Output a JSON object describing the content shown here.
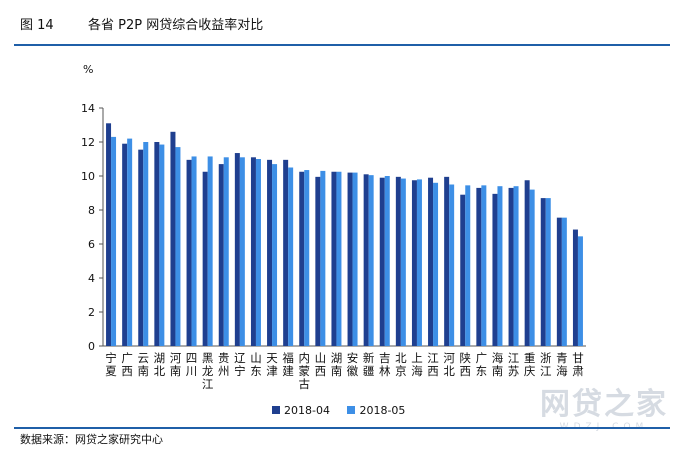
{
  "header": {
    "figure_no": "图 14",
    "title": "各省 P2P 网贷综合收益率对比"
  },
  "source": "数据来源：网贷之家研究中心",
  "watermark": {
    "text": "网贷之家",
    "sub": "WDZJ.COM"
  },
  "colors": {
    "series_1": "#1f3f8f",
    "series_2": "#3d8fe6",
    "rule": "#1f5fa8"
  },
  "chart_data": {
    "type": "bar",
    "title": "各省 P2P 网贷综合收益率对比",
    "ylabel": "%",
    "xlabel": "",
    "ylim": [
      0,
      14
    ],
    "yticks": [
      0,
      2,
      4,
      6,
      8,
      10,
      12,
      14
    ],
    "grid": false,
    "legend_position": "bottom",
    "categories": [
      "宁夏",
      "广西",
      "云南",
      "湖北",
      "河南",
      "四川",
      "黑龙江",
      "贵州",
      "辽宁",
      "山东",
      "天津",
      "福建",
      "内蒙古",
      "山西",
      "湖南",
      "安徽",
      "新疆",
      "吉林",
      "北京",
      "上海",
      "江西",
      "河北",
      "陕西",
      "广东",
      "海南",
      "江苏",
      "重庆",
      "浙江",
      "青海",
      "甘肃"
    ],
    "series": [
      {
        "name": "2018-04",
        "values": [
          13.1,
          11.9,
          11.55,
          12.0,
          12.6,
          10.95,
          10.25,
          10.7,
          11.35,
          11.1,
          10.95,
          10.95,
          10.25,
          9.95,
          10.25,
          10.2,
          10.1,
          9.9,
          9.95,
          9.75,
          9.9,
          9.95,
          8.9,
          9.3,
          8.95,
          9.3,
          9.75,
          8.7,
          7.55,
          6.85
        ]
      },
      {
        "name": "2018-05",
        "values": [
          12.3,
          12.2,
          12.0,
          11.85,
          11.7,
          11.15,
          11.15,
          11.1,
          11.1,
          11.0,
          10.7,
          10.5,
          10.35,
          10.3,
          10.25,
          10.2,
          10.05,
          10.0,
          9.85,
          9.8,
          9.6,
          9.5,
          9.45,
          9.45,
          9.4,
          9.4,
          9.2,
          8.7,
          7.55,
          6.45
        ]
      }
    ]
  }
}
